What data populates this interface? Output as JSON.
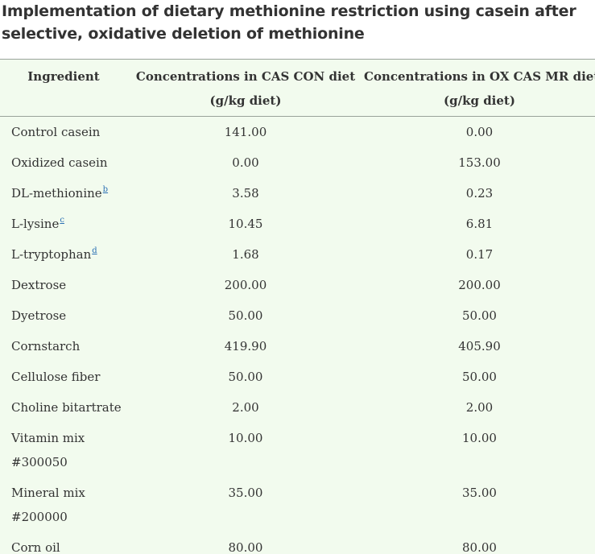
{
  "title": {
    "line1": "Implementation of dietary methionine restriction using casein after",
    "line2": "selective, oxidative deletion of methionine"
  },
  "table": {
    "headers": {
      "ingredient": "Ingredient",
      "cas_con_line1": "Concentrations in CAS CON diet",
      "cas_con_line2": "(g/kg diet)",
      "ox_cas_line1": "Concentrations in OX CAS MR diet",
      "ox_cas_line2": "(g/kg diet)"
    },
    "rows": [
      {
        "name": "Control casein",
        "cas_con": "141.00",
        "ox_cas": "0.00"
      },
      {
        "name": "Oxidized casein",
        "cas_con": "0.00",
        "ox_cas": "153.00"
      },
      {
        "name": "DL-methionine",
        "footnote": "b",
        "cas_con": "3.58",
        "ox_cas": "0.23"
      },
      {
        "name": "L-lysine",
        "footnote": "c",
        "cas_con": "10.45",
        "ox_cas": "6.81"
      },
      {
        "name": "L-tryptophan",
        "footnote": "d",
        "cas_con": "1.68",
        "ox_cas": "0.17"
      },
      {
        "name": "Dextrose",
        "cas_con": "200.00",
        "ox_cas": "200.00"
      },
      {
        "name": "Dyetrose",
        "cas_con": "50.00",
        "ox_cas": "50.00"
      },
      {
        "name": "Cornstarch",
        "cas_con": "419.90",
        "ox_cas": "405.90"
      },
      {
        "name": "Cellulose fiber",
        "cas_con": "50.00",
        "ox_cas": "50.00"
      },
      {
        "name": "Choline bitartrate",
        "cas_con": "2.00",
        "ox_cas": "2.00"
      },
      {
        "name": "Vitamin mix",
        "name2": "#300050",
        "cas_con": "10.00",
        "ox_cas": "10.00"
      },
      {
        "name": "Mineral mix",
        "name2": "#200000",
        "cas_con": "35.00",
        "ox_cas": "35.00"
      },
      {
        "name": "Corn oil",
        "cas_con": "80.00",
        "ox_cas": "80.00"
      }
    ]
  },
  "colors": {
    "table_background": "#f2fbee",
    "footnote_link": "#2a6fb3",
    "text": "#333333"
  }
}
